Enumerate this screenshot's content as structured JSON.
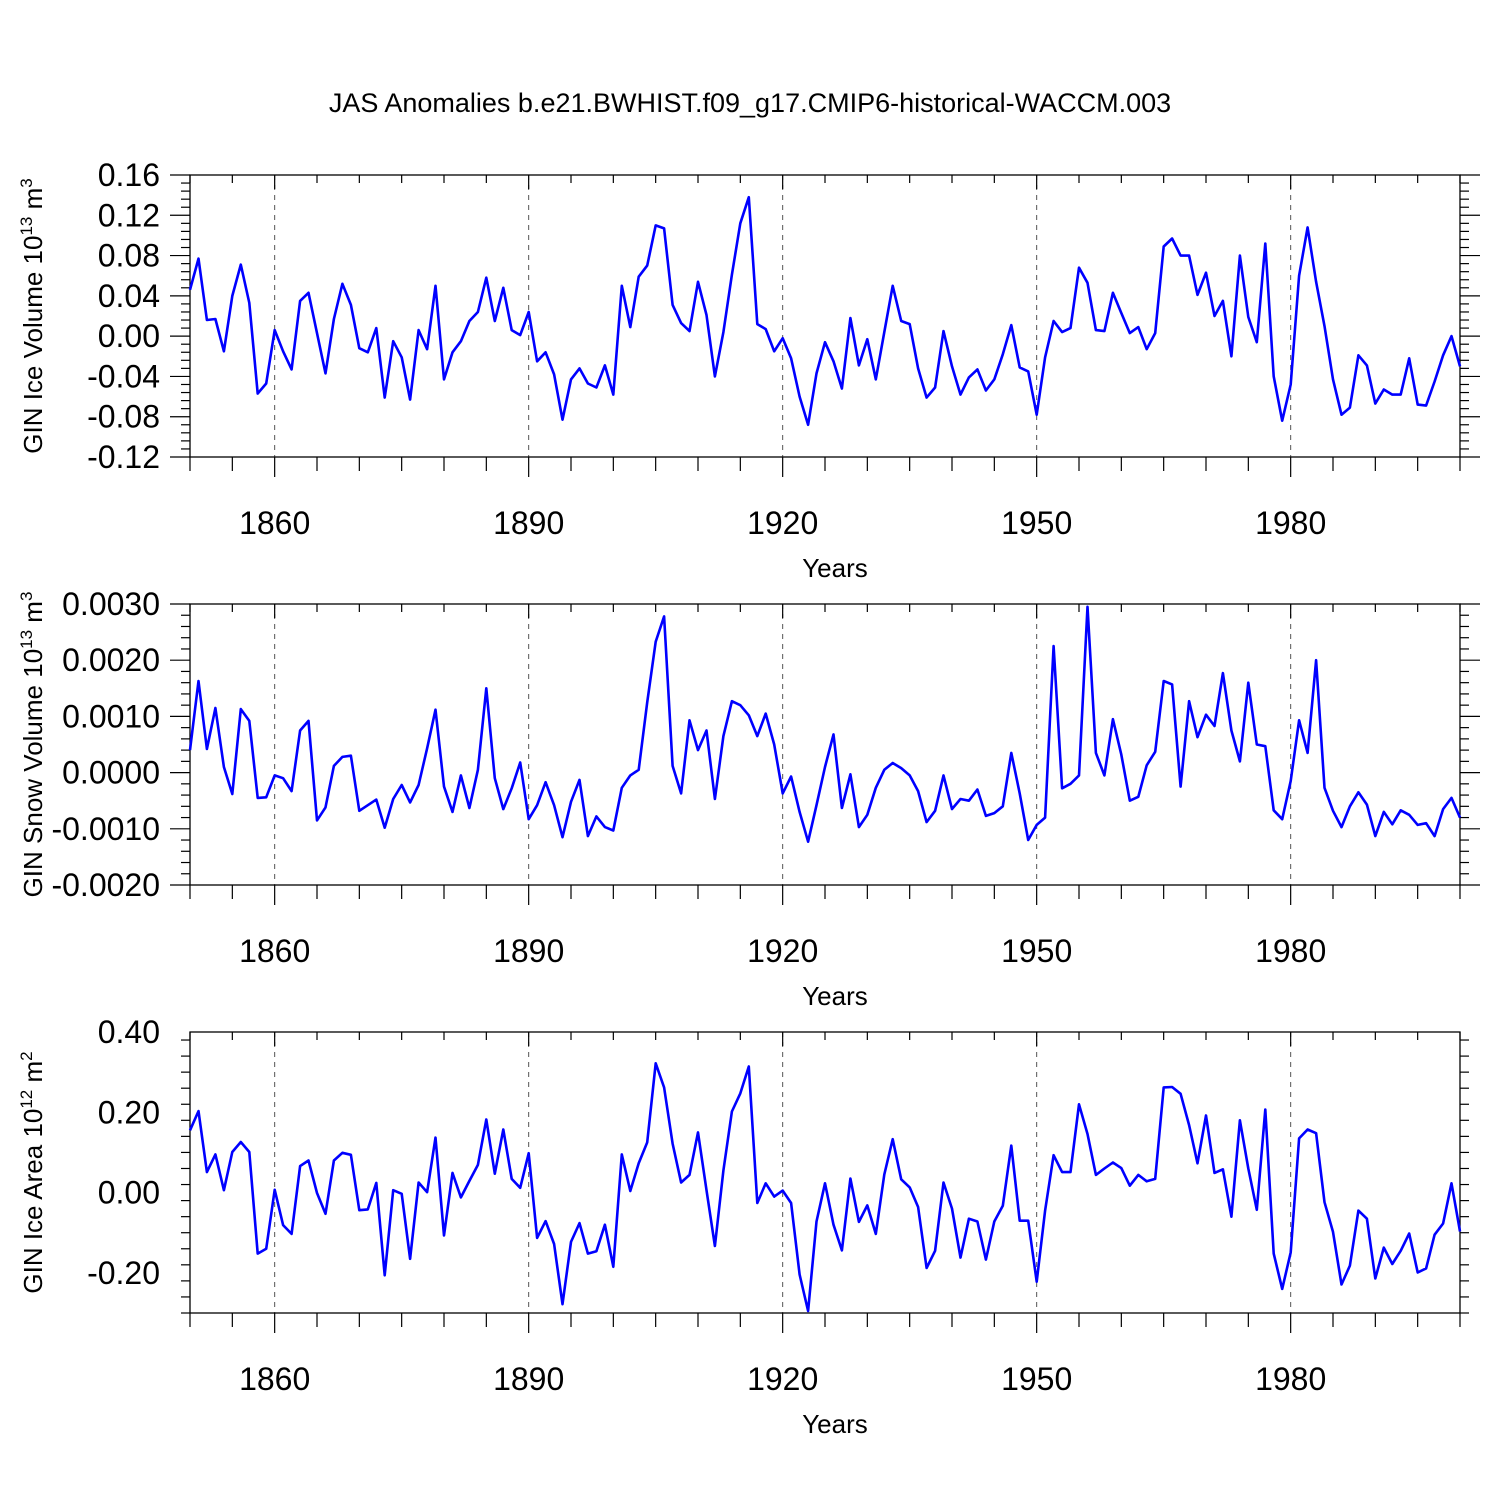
{
  "title": "JAS Anomalies b.e21.BWHIST.f09_g17.CMIP6-historical-WACCM.003",
  "colors": {
    "series": "#0000ff",
    "axes": "#000000"
  },
  "chart_data": [
    {
      "type": "line",
      "name": "ice-volume",
      "ylabel": "GIN Ice Volume 10",
      "ylabel_sup": "13",
      "ylabel_unit": " m",
      "ylabel_unit_sup": "3",
      "xlabel": "Years",
      "xlim": [
        1850,
        2000
      ],
      "ylim": [
        -0.12,
        0.16
      ],
      "xticks": [
        1860,
        1890,
        1920,
        1950,
        1980
      ],
      "xtick_labels": [
        "1860",
        "1890",
        "1920",
        "1950",
        "1980"
      ],
      "yticks": [
        -0.12,
        -0.08,
        -0.04,
        0.0,
        0.04,
        0.08,
        0.12,
        0.16
      ],
      "ytick_labels": [
        "-0.12",
        "-0.08",
        "-0.04",
        "0.00",
        "0.04",
        "0.08",
        "0.12",
        "0.16"
      ],
      "x_start": 1850,
      "values": [
        0.046,
        0.077,
        0.016,
        0.017,
        -0.015,
        0.04,
        0.071,
        0.033,
        -0.057,
        -0.047,
        0.006,
        -0.015,
        -0.033,
        0.035,
        0.043,
        0.003,
        -0.037,
        0.017,
        0.052,
        0.031,
        -0.012,
        -0.016,
        0.008,
        -0.061,
        -0.005,
        -0.021,
        -0.063,
        0.006,
        -0.013,
        0.05,
        -0.043,
        -0.016,
        -0.005,
        0.015,
        0.024,
        0.058,
        0.015,
        0.048,
        0.006,
        0.001,
        0.024,
        -0.025,
        -0.016,
        -0.038,
        -0.083,
        -0.043,
        -0.032,
        -0.047,
        -0.051,
        -0.029,
        -0.058,
        0.05,
        0.009,
        0.059,
        0.07,
        0.11,
        0.107,
        0.031,
        0.013,
        0.005,
        0.054,
        0.021,
        -0.04,
        0.004,
        0.061,
        0.112,
        0.138,
        0.012,
        0.007,
        -0.015,
        -0.002,
        -0.022,
        -0.06,
        -0.088,
        -0.037,
        -0.006,
        -0.025,
        -0.052,
        0.018,
        -0.029,
        -0.003,
        -0.043,
        0.004,
        0.05,
        0.015,
        0.012,
        -0.032,
        -0.061,
        -0.051,
        0.005,
        -0.03,
        -0.058,
        -0.041,
        -0.033,
        -0.054,
        -0.043,
        -0.018,
        0.011,
        -0.031,
        -0.035,
        -0.078,
        -0.021,
        0.015,
        0.004,
        0.008,
        0.068,
        0.053,
        0.006,
        0.005,
        0.043,
        0.023,
        0.003,
        0.009,
        -0.013,
        0.003,
        0.089,
        0.097,
        0.08,
        0.08,
        0.041,
        0.063,
        0.02,
        0.035,
        -0.02,
        0.08,
        0.019,
        -0.006,
        0.092,
        -0.04,
        -0.084,
        -0.048,
        0.06,
        0.108,
        0.054,
        0.01,
        -0.043,
        -0.078,
        -0.071,
        -0.019,
        -0.029,
        -0.067,
        -0.053,
        -0.058,
        -0.058,
        -0.022,
        -0.068,
        -0.069,
        -0.045,
        -0.019,
        0.0,
        -0.03
      ]
    },
    {
      "type": "line",
      "name": "snow-volume",
      "ylabel": "GIN Snow Volume 10",
      "ylabel_sup": "13",
      "ylabel_unit": " m",
      "ylabel_unit_sup": "3",
      "xlabel": "Years",
      "xlim": [
        1850,
        2000
      ],
      "ylim": [
        -0.002,
        0.003
      ],
      "xticks": [
        1860,
        1890,
        1920,
        1950,
        1980
      ],
      "xtick_labels": [
        "1860",
        "1890",
        "1920",
        "1950",
        "1980"
      ],
      "yticks": [
        -0.002,
        -0.001,
        0.0,
        0.001,
        0.002,
        0.003
      ],
      "ytick_labels": [
        "-0.0020",
        "-0.0010",
        "0.0000",
        "0.0010",
        "0.0020",
        "0.0030"
      ],
      "x_start": 1850,
      "values": [
        0.0004,
        0.00163,
        0.00042,
        0.00115,
        0.0001,
        -0.00038,
        0.00113,
        0.00092,
        -0.00045,
        -0.00044,
        -5e-05,
        -0.0001,
        -0.00033,
        0.00075,
        0.00092,
        -0.00085,
        -0.00062,
        0.00012,
        0.00028,
        0.0003,
        -0.00068,
        -0.00058,
        -0.00048,
        -0.00098,
        -0.00047,
        -0.00022,
        -0.00053,
        -0.00022,
        0.00043,
        0.00112,
        -0.00025,
        -0.0007,
        -5e-05,
        -0.00063,
        5e-05,
        0.0015,
        -0.0001,
        -0.00065,
        -0.00028,
        0.00018,
        -0.00083,
        -0.00058,
        -0.00017,
        -0.00058,
        -0.00115,
        -0.00052,
        -0.00013,
        -0.00113,
        -0.00078,
        -0.00097,
        -0.00103,
        -0.00027,
        -5e-05,
        5e-05,
        0.00125,
        0.00233,
        0.00278,
        0.00012,
        -0.00037,
        0.00093,
        0.0004,
        0.00075,
        -0.00047,
        0.00065,
        0.00127,
        0.0012,
        0.00102,
        0.00065,
        0.00105,
        0.0005,
        -0.00037,
        -7e-05,
        -0.0007,
        -0.00123,
        -0.00058,
        0.0001,
        0.00068,
        -0.00063,
        -3e-05,
        -0.00097,
        -0.00075,
        -0.00027,
        5e-05,
        0.00017,
        8e-05,
        -5e-05,
        -0.00033,
        -0.00088,
        -0.00068,
        -5e-05,
        -0.00065,
        -0.00047,
        -0.0005,
        -0.0003,
        -0.00077,
        -0.00072,
        -0.0006,
        0.00035,
        -0.00037,
        -0.0012,
        -0.00093,
        -0.0008,
        0.00225,
        -0.00028,
        -0.0002,
        -5e-05,
        0.00295,
        0.00035,
        -5e-05,
        0.00095,
        0.00032,
        -0.0005,
        -0.00043,
        0.00013,
        0.00037,
        0.00163,
        0.00157,
        -0.00025,
        0.00127,
        0.00063,
        0.00103,
        0.00083,
        0.00177,
        0.00075,
        0.0002,
        0.0016,
        0.0005,
        0.00047,
        -0.00067,
        -0.00083,
        -0.00015,
        0.00093,
        0.00035,
        0.002,
        -0.00027,
        -0.00068,
        -0.00097,
        -0.0006,
        -0.00035,
        -0.00057,
        -0.00113,
        -0.0007,
        -0.00092,
        -0.00067,
        -0.00075,
        -0.00093,
        -0.0009,
        -0.00113,
        -0.00065,
        -0.00045,
        -0.0008
      ]
    },
    {
      "type": "line",
      "name": "ice-area",
      "ylabel": "GIN Ice Area 10",
      "ylabel_sup": "12",
      "ylabel_unit": " m",
      "ylabel_unit_sup": "2",
      "xlabel": "Years",
      "xlim": [
        1850,
        2000
      ],
      "ylim": [
        -0.3,
        0.4
      ],
      "xticks": [
        1860,
        1890,
        1920,
        1950,
        1980
      ],
      "xtick_labels": [
        "1860",
        "1890",
        "1920",
        "1950",
        "1980"
      ],
      "yticks": [
        -0.2,
        0.0,
        0.2,
        0.4
      ],
      "ytick_labels": [
        "-0.20",
        "0.00",
        "0.20",
        "0.40"
      ],
      "x_start": 1850,
      "values": [
        0.155,
        0.203,
        0.051,
        0.095,
        0.006,
        0.101,
        0.126,
        0.101,
        -0.152,
        -0.14,
        0.007,
        -0.081,
        -0.103,
        0.066,
        0.08,
        -0.001,
        -0.053,
        0.08,
        0.099,
        0.094,
        -0.044,
        -0.042,
        0.024,
        -0.206,
        0.006,
        -0.003,
        -0.165,
        0.025,
        0.001,
        0.137,
        -0.107,
        0.049,
        -0.012,
        0.029,
        0.069,
        0.182,
        0.047,
        0.157,
        0.034,
        0.012,
        0.098,
        -0.113,
        -0.071,
        -0.128,
        -0.278,
        -0.123,
        -0.076,
        -0.152,
        -0.146,
        -0.08,
        -0.185,
        0.095,
        0.004,
        0.073,
        0.125,
        0.322,
        0.262,
        0.122,
        0.025,
        0.044,
        0.15,
        0.006,
        -0.133,
        0.055,
        0.202,
        0.247,
        0.314,
        -0.026,
        0.023,
        -0.01,
        0.005,
        -0.026,
        -0.204,
        -0.295,
        -0.072,
        0.023,
        -0.08,
        -0.144,
        0.035,
        -0.073,
        -0.032,
        -0.103,
        0.045,
        0.133,
        0.033,
        0.013,
        -0.036,
        -0.188,
        -0.145,
        0.025,
        -0.04,
        -0.162,
        -0.065,
        -0.072,
        -0.167,
        -0.072,
        -0.033,
        0.117,
        -0.07,
        -0.07,
        -0.222,
        -0.045,
        0.093,
        0.051,
        0.051,
        0.22,
        0.146,
        0.044,
        0.06,
        0.075,
        0.061,
        0.017,
        0.044,
        0.028,
        0.034,
        0.262,
        0.263,
        0.246,
        0.168,
        0.073,
        0.192,
        0.049,
        0.058,
        -0.06,
        0.18,
        0.06,
        -0.043,
        0.207,
        -0.152,
        -0.24,
        -0.149,
        0.135,
        0.157,
        0.148,
        -0.024,
        -0.098,
        -0.229,
        -0.182,
        -0.045,
        -0.065,
        -0.214,
        -0.137,
        -0.178,
        -0.145,
        -0.102,
        -0.199,
        -0.189,
        -0.105,
        -0.077,
        0.023,
        -0.097
      ]
    }
  ]
}
